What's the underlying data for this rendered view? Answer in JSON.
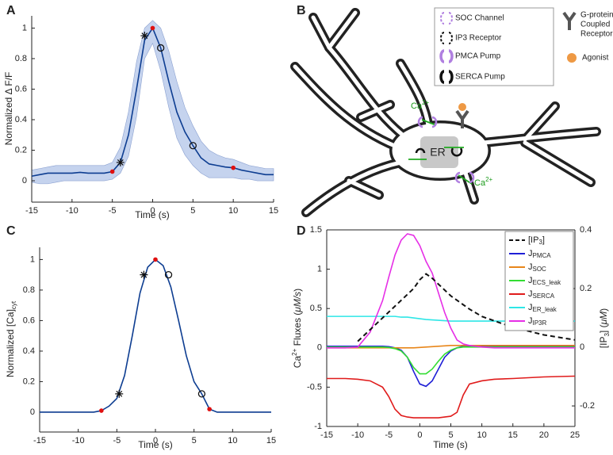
{
  "chart_data": [
    {
      "type": "line",
      "panel": "A",
      "x_label": "Time (s)",
      "y_label": "Normalized Δ F/F",
      "x": [
        -15,
        -14,
        -13,
        -12,
        -11,
        -10,
        -9,
        -8,
        -7,
        -6,
        -5,
        -4,
        -3,
        -2,
        -1,
        0,
        1,
        2,
        3,
        4,
        5,
        6,
        7,
        8,
        9,
        10,
        11,
        12,
        13,
        14,
        15
      ],
      "series": [
        {
          "color": "#0d3d91",
          "values": [
            0.03,
            0.04,
            0.05,
            0.05,
            0.05,
            0.05,
            0.055,
            0.05,
            0.05,
            0.05,
            0.06,
            0.12,
            0.3,
            0.6,
            0.92,
            1.0,
            0.87,
            0.65,
            0.45,
            0.32,
            0.23,
            0.15,
            0.11,
            0.1,
            0.09,
            0.085,
            0.07,
            0.06,
            0.05,
            0.04,
            0.04
          ]
        }
      ],
      "band": {
        "color": "#c5d3ee",
        "upper": [
          0.07,
          0.08,
          0.09,
          0.1,
          0.1,
          0.1,
          0.1,
          0.1,
          0.1,
          0.1,
          0.12,
          0.22,
          0.45,
          0.78,
          1.0,
          1.05,
          1.0,
          0.85,
          0.65,
          0.48,
          0.36,
          0.26,
          0.2,
          0.17,
          0.15,
          0.14,
          0.12,
          0.1,
          0.09,
          0.08,
          0.08
        ],
        "lower": [
          -0.01,
          -0.02,
          -0.02,
          -0.01,
          0,
          0,
          0,
          0,
          0,
          0,
          0.01,
          0.05,
          0.16,
          0.42,
          0.8,
          0.9,
          0.72,
          0.48,
          0.28,
          0.17,
          0.1,
          0.05,
          0.02,
          0.02,
          0.02,
          0.02,
          0.01,
          0.01,
          0,
          0,
          0
        ]
      },
      "markers": [
        {
          "shape": "dot",
          "color": "#e01010",
          "x": [
            -5,
            0,
            10
          ],
          "y": [
            0.06,
            1.0,
            0.085
          ]
        },
        {
          "shape": "asterisk",
          "color": "#111111",
          "x": [
            -4,
            -1
          ],
          "y": [
            0.12,
            0.95
          ]
        },
        {
          "shape": "circle",
          "color": "#111111",
          "x": [
            1,
            5
          ],
          "y": [
            0.87,
            0.23
          ]
        }
      ],
      "xlim": [
        -15,
        15
      ],
      "xticks": [
        -15,
        -10,
        -5,
        0,
        5,
        10,
        15
      ],
      "ylim": [
        -0.14,
        1.08
      ],
      "yticks": [
        0,
        0.2,
        0.4,
        0.6,
        0.8,
        1
      ]
    },
    {
      "type": "line",
      "panel": "C",
      "x_label": "Time (s)",
      "y_label": "Normalized [Ca]",
      "y_label_sub": "cyt",
      "x": [
        -15,
        -14,
        -13,
        -12,
        -11,
        -10,
        -9,
        -8,
        -7,
        -6,
        -5,
        -4,
        -3,
        -2,
        -1,
        0,
        1,
        2,
        3,
        4,
        5,
        6,
        7,
        8,
        9,
        10,
        11,
        12,
        13,
        14,
        15
      ],
      "series": [
        {
          "color": "#0d3d91",
          "values": [
            0,
            0,
            0,
            0,
            0,
            0,
            0,
            0,
            0.01,
            0.04,
            0.09,
            0.24,
            0.5,
            0.78,
            0.95,
            1,
            0.96,
            0.82,
            0.6,
            0.37,
            0.2,
            0.12,
            0.02,
            0,
            0,
            0,
            0,
            0,
            0,
            0,
            0
          ]
        }
      ],
      "markers": [
        {
          "shape": "dot",
          "color": "#e01010",
          "x": [
            -7,
            0,
            7
          ],
          "y": [
            0.01,
            1,
            0.02
          ]
        },
        {
          "shape": "asterisk",
          "color": "#111111",
          "x": [
            -4.7,
            -1.5
          ],
          "y": [
            0.12,
            0.9
          ]
        },
        {
          "shape": "circle",
          "color": "#111111",
          "x": [
            1.7,
            6
          ],
          "y": [
            0.9,
            0.12
          ]
        }
      ],
      "xlim": [
        -15,
        15
      ],
      "xticks": [
        -15,
        -10,
        -5,
        0,
        5,
        10,
        15
      ],
      "ylim": [
        -0.13,
        1.08
      ],
      "yticks": [
        0,
        0.2,
        0.4,
        0.6,
        0.8,
        1
      ]
    },
    {
      "type": "line",
      "panel": "D",
      "x_label": "Time (s)",
      "y_label": [
        "Ca",
        "2+",
        " Fluxes (",
        "μM/s",
        ")"
      ],
      "y2_label": [
        "[IP",
        "3",
        "] (",
        "μM",
        ")"
      ],
      "box": true,
      "legend": "upper right",
      "x": [
        -15,
        -12,
        -10,
        -8,
        -6,
        -5,
        -4,
        -3,
        -2,
        -1,
        0,
        1,
        2,
        3,
        4,
        5,
        6,
        7,
        8,
        10,
        12,
        15,
        20,
        25
      ],
      "series": [
        {
          "name": "[IP",
          "sub": "3",
          "suffix": "]",
          "color": "#111111",
          "dashed": true,
          "axis": "y2",
          "values": [
            null,
            null,
            0.02,
            0.06,
            0.1,
            0.12,
            0.14,
            0.16,
            0.18,
            0.2,
            0.23,
            0.25,
            0.235,
            0.215,
            0.195,
            0.175,
            0.16,
            0.145,
            0.13,
            0.105,
            0.09,
            0.068,
            0.042,
            0.025
          ]
        },
        {
          "name": "J",
          "sub": "PMCA",
          "color": "#1f1fd6",
          "values": [
            0.02,
            0.02,
            0.02,
            0.02,
            0.02,
            0.015,
            0,
            -0.03,
            -0.12,
            -0.3,
            -0.46,
            -0.49,
            -0.42,
            -0.27,
            -0.12,
            -0.04,
            0,
            0.02,
            0.02,
            0.02,
            0.02,
            0.02,
            0.02,
            0.02
          ]
        },
        {
          "name": "J",
          "sub": "SOC",
          "color": "#e8861a",
          "values": [
            0,
            0,
            0,
            0,
            0,
            0,
            0,
            0,
            0,
            0,
            0.005,
            0.01,
            0.015,
            0.02,
            0.025,
            0.03,
            0.03,
            0.03,
            0.03,
            0.03,
            0.03,
            0.03,
            0.03,
            0.03
          ]
        },
        {
          "name": "J",
          "sub": "ECS_leak",
          "color": "#33dd33",
          "values": [
            0.01,
            0.01,
            0.01,
            0.01,
            0.01,
            0.005,
            -0.01,
            -0.04,
            -0.12,
            -0.25,
            -0.33,
            -0.33,
            -0.27,
            -0.17,
            -0.08,
            -0.03,
            0,
            0.01,
            0.01,
            0.01,
            0.01,
            0.01,
            0.01,
            0.01
          ]
        },
        {
          "name": "J",
          "sub": "SERCA",
          "color": "#e01b1b",
          "values": [
            -0.39,
            -0.39,
            -0.4,
            -0.42,
            -0.5,
            -0.62,
            -0.78,
            -0.86,
            -0.88,
            -0.89,
            -0.89,
            -0.89,
            -0.89,
            -0.89,
            -0.88,
            -0.87,
            -0.82,
            -0.6,
            -0.46,
            -0.42,
            -0.4,
            -0.39,
            -0.37,
            -0.36
          ]
        },
        {
          "name": "J",
          "sub": "ER_leak",
          "color": "#2ee6e6",
          "values": [
            0.4,
            0.4,
            0.4,
            0.4,
            0.4,
            0.4,
            0.4,
            0.39,
            0.39,
            0.38,
            0.37,
            0.36,
            0.355,
            0.35,
            0.345,
            0.34,
            0.34,
            0.34,
            0.34,
            0.34,
            0.34,
            0.34,
            0.34,
            0.34
          ]
        },
        {
          "name": "J",
          "sub": "IP3R",
          "color": "#e62ee6",
          "values": [
            0,
            0,
            0.01,
            0.2,
            0.6,
            0.9,
            1.18,
            1.37,
            1.45,
            1.43,
            1.3,
            1.1,
            0.95,
            0.7,
            0.45,
            0.25,
            0.1,
            0.05,
            0.03,
            0.01,
            0,
            0,
            0,
            0
          ]
        }
      ],
      "xlim": [
        -15,
        25
      ],
      "xticks": [
        -15,
        -10,
        -5,
        0,
        5,
        10,
        15,
        20,
        25
      ],
      "ylim": [
        -1,
        1.5
      ],
      "yticks": [
        -1,
        -0.5,
        0,
        0.5,
        1,
        1.5
      ],
      "y2lim": [
        -0.27,
        0.4
      ],
      "y2ticks": [
        -0.2,
        0,
        0.2,
        0.4
      ]
    }
  ],
  "diagram": {
    "panel": "B",
    "legend": {
      "soc": "SOC Channel",
      "ip3r": "IP3 Receptor",
      "pmca": "PMCA Pump",
      "serca": "SERCA Pump",
      "gpcr": [
        "G-protein",
        "Coupled",
        "Receptor"
      ],
      "agonist": "Agonist"
    },
    "ca_label": "Ca",
    "ca_sup": "2+",
    "er": "ER"
  }
}
